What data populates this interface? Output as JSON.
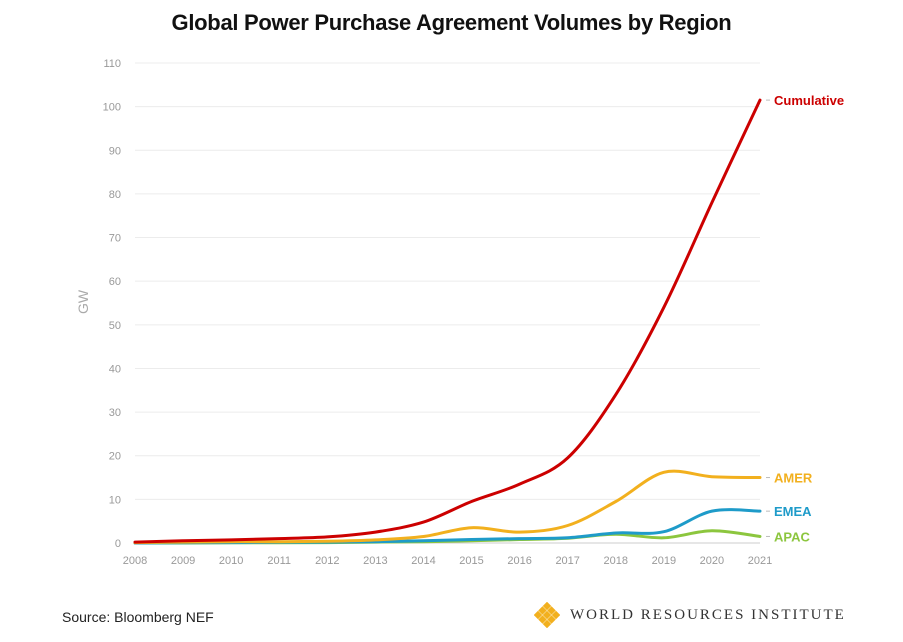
{
  "chart_data": {
    "type": "line",
    "title": "Global Power Purchase Agreement Volumes by Region",
    "ylabel": "GW",
    "xlabel": "",
    "x": [
      2008,
      2009,
      2010,
      2011,
      2012,
      2013,
      2014,
      2015,
      2016,
      2017,
      2018,
      2019,
      2020,
      2021
    ],
    "xlim": [
      2008,
      2021
    ],
    "ylim": [
      0,
      110
    ],
    "yticks": [
      0,
      10,
      20,
      30,
      40,
      50,
      60,
      70,
      80,
      90,
      100,
      110
    ],
    "grid": true,
    "legend": "direct labels at right end of lines",
    "series": [
      {
        "name": "Cumulative",
        "color": "#cc0000",
        "values": [
          0.2,
          0.5,
          0.7,
          1.0,
          1.4,
          2.5,
          4.8,
          9.5,
          13.5,
          19.5,
          34.0,
          54.0,
          78.0,
          101.5
        ]
      },
      {
        "name": "AMER",
        "color": "#f2b01e",
        "values": [
          0.1,
          0.2,
          0.3,
          0.3,
          0.4,
          0.7,
          1.5,
          3.5,
          2.5,
          4.0,
          9.5,
          16.2,
          15.2,
          15.0
        ]
      },
      {
        "name": "EMEA",
        "color": "#1e9bc9",
        "values": [
          0.0,
          0.05,
          0.1,
          0.15,
          0.2,
          0.3,
          0.5,
          0.8,
          1.0,
          1.2,
          2.3,
          2.6,
          7.3,
          7.3
        ]
      },
      {
        "name": "APAC",
        "color": "#8cc63e",
        "values": [
          0.0,
          0.0,
          0.05,
          0.05,
          0.1,
          0.2,
          0.3,
          0.5,
          0.8,
          1.1,
          2.0,
          1.2,
          2.8,
          1.5
        ]
      }
    ]
  },
  "source": "Source: Bloomberg NEF",
  "logo": {
    "text": "WORLD RESOURCES INSTITUTE",
    "color": "#f2b01e"
  }
}
